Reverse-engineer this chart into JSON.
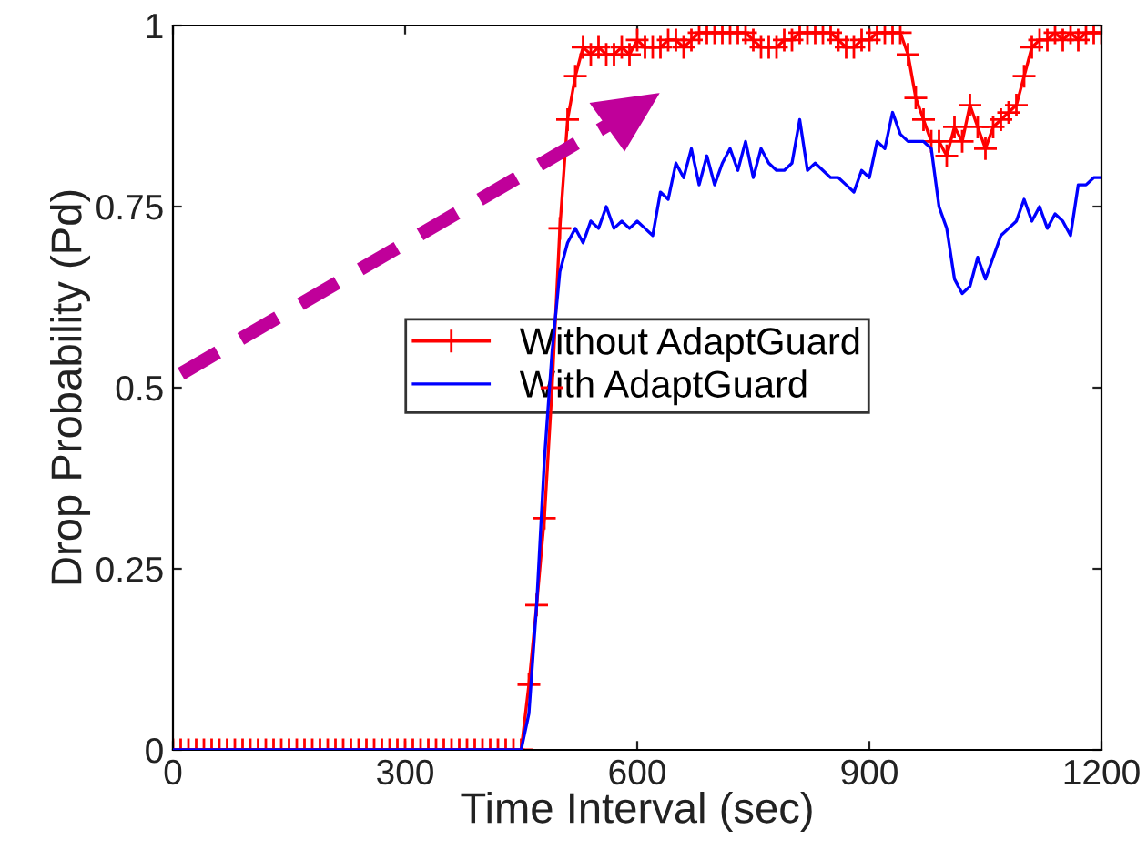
{
  "chart_data": {
    "type": "line",
    "xlabel": "Time Interval (sec)",
    "ylabel": "Drop Probability (Pd)",
    "xlim": [
      0,
      1200
    ],
    "ylim": [
      0,
      1
    ],
    "xticks": [
      0,
      300,
      600,
      900,
      1200
    ],
    "yticks": [
      0,
      0.25,
      0.5,
      0.75,
      1
    ],
    "grid": false,
    "legend": "center",
    "line_style": "solid",
    "x": [
      0,
      10,
      20,
      30,
      40,
      50,
      60,
      70,
      80,
      90,
      100,
      110,
      120,
      130,
      140,
      150,
      160,
      170,
      180,
      190,
      200,
      210,
      220,
      230,
      240,
      250,
      260,
      270,
      280,
      290,
      300,
      310,
      320,
      330,
      340,
      350,
      360,
      370,
      380,
      390,
      400,
      410,
      420,
      430,
      440,
      450,
      460,
      470,
      480,
      490,
      500,
      510,
      520,
      530,
      540,
      550,
      560,
      570,
      580,
      590,
      600,
      610,
      620,
      630,
      640,
      650,
      660,
      670,
      680,
      690,
      700,
      710,
      720,
      730,
      740,
      750,
      760,
      770,
      780,
      790,
      800,
      810,
      820,
      830,
      840,
      850,
      860,
      870,
      880,
      890,
      900,
      910,
      920,
      930,
      940,
      950,
      960,
      970,
      980,
      990,
      1000,
      1010,
      1020,
      1030,
      1040,
      1050,
      1060,
      1070,
      1080,
      1090,
      1100,
      1110,
      1120,
      1130,
      1140,
      1150,
      1160,
      1170,
      1180,
      1190,
      1200
    ],
    "series": [
      {
        "name": "Without AdaptGuard",
        "color": "#ff0000",
        "marker": "cross",
        "values": [
          0,
          0,
          0,
          0,
          0,
          0,
          0,
          0,
          0,
          0,
          0,
          0,
          0,
          0,
          0,
          0,
          0,
          0,
          0,
          0,
          0,
          0,
          0,
          0,
          0,
          0,
          0,
          0,
          0,
          0,
          0,
          0,
          0,
          0,
          0,
          0,
          0,
          0,
          0,
          0,
          0,
          0,
          0,
          0,
          0,
          0,
          0.09,
          0.2,
          0.32,
          0.5,
          0.72,
          0.87,
          0.93,
          0.97,
          0.96,
          0.97,
          0.96,
          0.96,
          0.97,
          0.96,
          0.98,
          0.97,
          0.97,
          0.97,
          0.98,
          0.98,
          0.97,
          0.98,
          0.99,
          0.99,
          0.99,
          0.99,
          0.99,
          0.99,
          0.99,
          0.98,
          0.97,
          0.97,
          0.97,
          0.98,
          0.98,
          0.99,
          0.99,
          0.99,
          0.99,
          0.99,
          0.98,
          0.97,
          0.97,
          0.98,
          0.98,
          0.99,
          0.99,
          0.99,
          0.99,
          0.96,
          0.9,
          0.87,
          0.84,
          0.84,
          0.82,
          0.86,
          0.84,
          0.89,
          0.86,
          0.83,
          0.86,
          0.87,
          0.88,
          0.89,
          0.93,
          0.97,
          0.98,
          0.98,
          0.99,
          0.98,
          0.99,
          0.98,
          0.99,
          0.99,
          0.99
        ]
      },
      {
        "name": "With AdaptGuard",
        "color": "#0000ff",
        "marker": "none",
        "values": [
          0,
          0,
          0,
          0,
          0,
          0,
          0,
          0,
          0,
          0,
          0,
          0,
          0,
          0,
          0,
          0,
          0,
          0,
          0,
          0,
          0,
          0,
          0,
          0,
          0,
          0,
          0,
          0,
          0,
          0,
          0,
          0,
          0,
          0,
          0,
          0,
          0,
          0,
          0,
          0,
          0,
          0,
          0,
          0,
          0,
          0,
          0.05,
          0.2,
          0.4,
          0.55,
          0.66,
          0.7,
          0.72,
          0.7,
          0.73,
          0.72,
          0.75,
          0.72,
          0.73,
          0.72,
          0.73,
          0.72,
          0.71,
          0.77,
          0.76,
          0.81,
          0.79,
          0.83,
          0.78,
          0.82,
          0.78,
          0.81,
          0.83,
          0.8,
          0.84,
          0.79,
          0.83,
          0.81,
          0.8,
          0.8,
          0.81,
          0.87,
          0.8,
          0.81,
          0.8,
          0.79,
          0.79,
          0.78,
          0.77,
          0.8,
          0.79,
          0.84,
          0.83,
          0.88,
          0.85,
          0.84,
          0.84,
          0.84,
          0.83,
          0.75,
          0.72,
          0.65,
          0.63,
          0.64,
          0.68,
          0.65,
          0.68,
          0.71,
          0.72,
          0.73,
          0.76,
          0.73,
          0.75,
          0.72,
          0.74,
          0.73,
          0.71,
          0.78,
          0.78,
          0.79,
          0.79
        ]
      }
    ]
  }
}
